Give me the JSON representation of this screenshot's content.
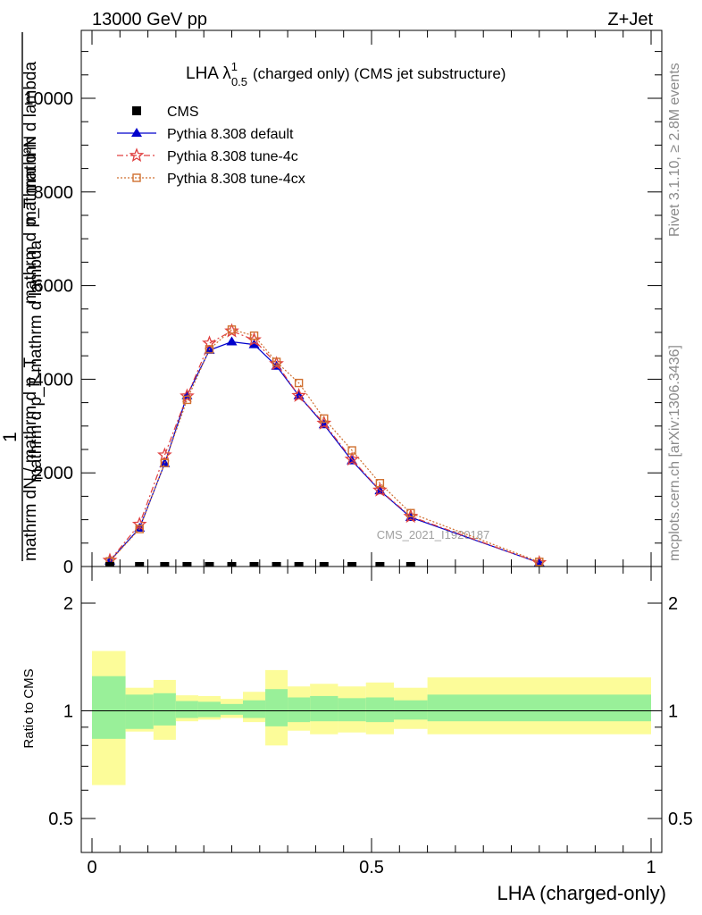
{
  "header": {
    "left": "13000 GeV pp",
    "right": "Z+Jet"
  },
  "plot_title": {
    "prefix": "LHA λ",
    "sup": "1",
    "sub": "0.5",
    "suffix": "(charged only) (CMS jet substructure)"
  },
  "side_labels": {
    "rivet": "Rivet 3.1.10, ≥ 2.8M events",
    "mcplots": "mcplots.cern.ch [arXiv:1306.3436]"
  },
  "watermark": "CMS_2021_I1920187",
  "main_ylabel": {
    "numerator": "1",
    "frac_top": "mathrm d²N",
    "frac_top_exp": "2",
    "frac_bottom": "mathrm d p_T mathrm d lambda",
    "denominator": "mathrm dN / mathrm d p_T"
  },
  "ylabel_overlay_a": "mathrm d p_T mathrm d lambda",
  "ylabel_overlay_b": "mathrm dN / mathrm d p_T",
  "ratio_ylabel": "Ratio to CMS",
  "xlabel": "LHA (charged-only)",
  "chart_data": [
    {
      "type": "line",
      "title": "LHA λ^1_0.5 (charged only) (CMS jet substructure)",
      "xlabel": "LHA (charged-only)",
      "ylabel": "1 / (mathrm dN / mathrm d p_T) · mathrm d²N / (mathrm d p_T mathrm d lambda)",
      "xlim": [
        0,
        1
      ],
      "ylim": [
        0,
        11500
      ],
      "y_ticks": [
        0,
        2000,
        4000,
        6000,
        8000,
        10000
      ],
      "y_tick_labels": [
        "0",
        "2000",
        "4000",
        "6000",
        "8000",
        "10000"
      ],
      "legend_position": "top-left",
      "x": [
        0.032,
        0.085,
        0.13,
        0.17,
        0.21,
        0.25,
        0.29,
        0.33,
        0.37,
        0.415,
        0.465,
        0.515,
        0.57,
        0.8
      ],
      "series": [
        {
          "name": "CMS",
          "color": "#000000",
          "marker": "square",
          "values": [
            0,
            0,
            0,
            0,
            0,
            0,
            0,
            0,
            0,
            0,
            0,
            0,
            0,
            null
          ]
        },
        {
          "name": "Pythia 8.308 default",
          "color": "#0000cc",
          "marker": "triangle",
          "line": "solid",
          "values": [
            120,
            820,
            2200,
            3650,
            4620,
            4800,
            4740,
            4280,
            3650,
            3030,
            2260,
            1620,
            1050,
            80
          ]
        },
        {
          "name": "Pythia 8.308 tune-4c",
          "color": "#e04040",
          "marker": "star",
          "line": "dashdot",
          "values": [
            130,
            900,
            2380,
            3640,
            4770,
            5030,
            4840,
            4330,
            3650,
            3060,
            2290,
            1630,
            1070,
            80
          ]
        },
        {
          "name": "Pythia 8.308 tune-4cx",
          "color": "#d07030",
          "marker": "open-square",
          "line": "dotted",
          "values": [
            110,
            800,
            2210,
            3560,
            4640,
            5060,
            4930,
            4370,
            3920,
            3160,
            2480,
            1780,
            1140,
            100
          ]
        }
      ]
    },
    {
      "type": "area",
      "title": "",
      "ylabel": "Ratio to CMS",
      "xlabel": "LHA (charged-only)",
      "xlim": [
        0,
        1
      ],
      "y_scale": "log",
      "ylim": [
        0.4,
        2.5
      ],
      "y_ticks": [
        0.5,
        1,
        2
      ],
      "y_tick_labels": [
        "0.5",
        "1",
        "2"
      ],
      "x_ticks": [
        0,
        0.5,
        1
      ],
      "x_tick_labels": [
        "0",
        "0.5",
        "1"
      ],
      "reference_line": 1,
      "bins": [
        [
          0,
          0.06
        ],
        [
          0.06,
          0.11
        ],
        [
          0.11,
          0.15
        ],
        [
          0.15,
          0.19
        ],
        [
          0.19,
          0.23
        ],
        [
          0.23,
          0.27
        ],
        [
          0.27,
          0.31
        ],
        [
          0.31,
          0.35
        ],
        [
          0.35,
          0.39
        ],
        [
          0.39,
          0.44
        ],
        [
          0.44,
          0.49
        ],
        [
          0.49,
          0.54
        ],
        [
          0.54,
          0.6
        ],
        [
          0.6,
          1.0
        ]
      ],
      "band_colors": {
        "inner": "#99f099",
        "outer": "#fcfc99"
      },
      "inner_band": [
        [
          0.835,
          1.25
        ],
        [
          0.89,
          1.11
        ],
        [
          0.91,
          1.12
        ],
        [
          0.955,
          1.065
        ],
        [
          0.96,
          1.06
        ],
        [
          0.975,
          1.045
        ],
        [
          0.955,
          1.07
        ],
        [
          0.905,
          1.15
        ],
        [
          0.93,
          1.09
        ],
        [
          0.935,
          1.1
        ],
        [
          0.935,
          1.085
        ],
        [
          0.93,
          1.09
        ],
        [
          0.945,
          1.07
        ],
        [
          0.935,
          1.11
        ]
      ],
      "outer_band": [
        [
          0.62,
          1.47
        ],
        [
          0.875,
          1.16
        ],
        [
          0.83,
          1.22
        ],
        [
          0.935,
          1.105
        ],
        [
          0.945,
          1.1
        ],
        [
          0.955,
          1.08
        ],
        [
          0.93,
          1.13
        ],
        [
          0.8,
          1.3
        ],
        [
          0.88,
          1.17
        ],
        [
          0.86,
          1.19
        ],
        [
          0.87,
          1.17
        ],
        [
          0.86,
          1.2
        ],
        [
          0.89,
          1.16
        ],
        [
          0.86,
          1.24
        ]
      ]
    }
  ]
}
